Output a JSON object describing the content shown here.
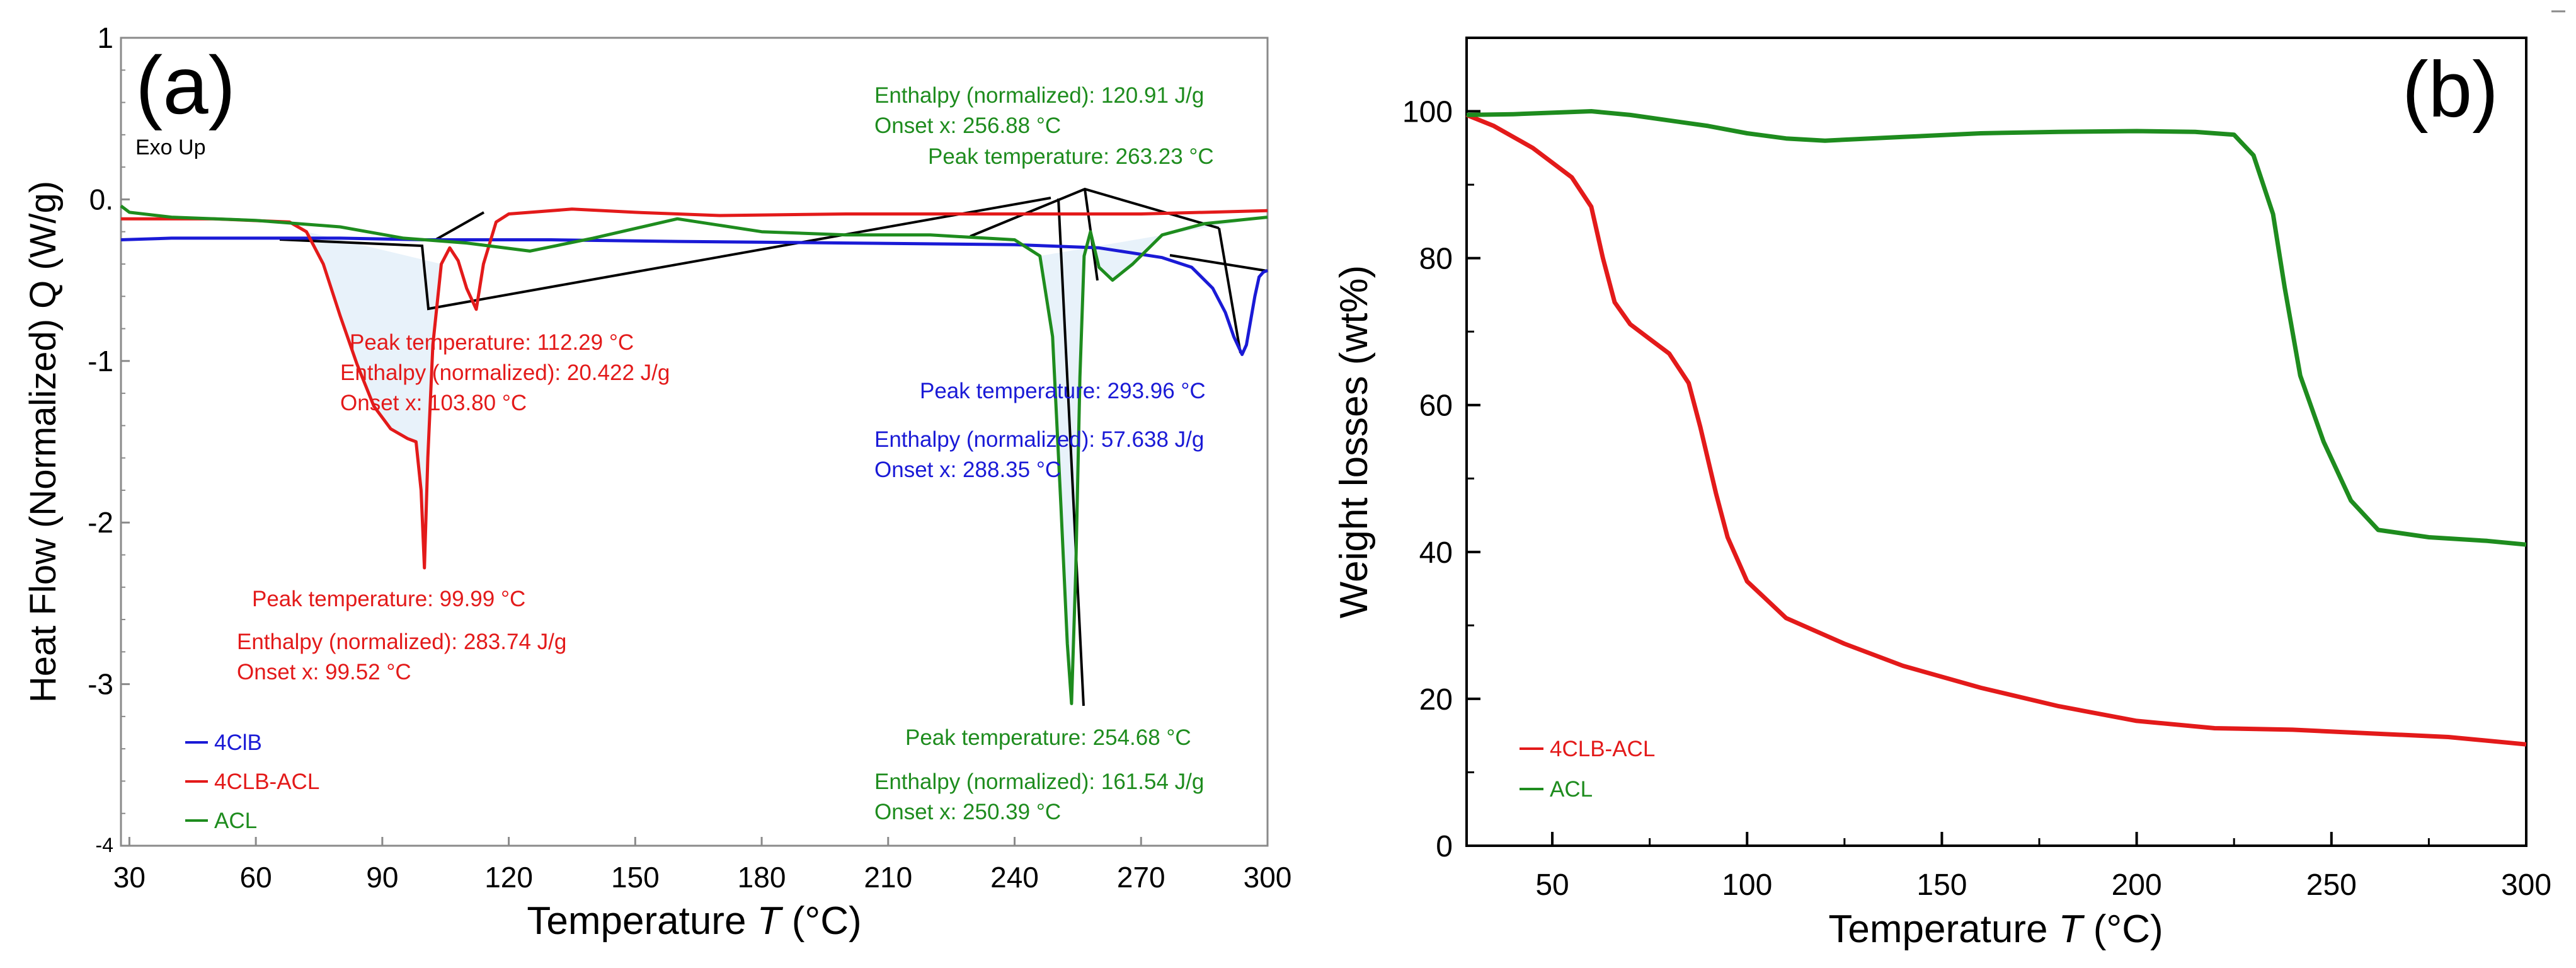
{
  "chart_data": [
    {
      "type": "line",
      "panel_label": "(a)",
      "corner_note": "Exo Up",
      "xlabel_main": "Temperature ",
      "xlabel_italic": "T",
      "xlabel_unit": " (°C)",
      "ylabel": "Heat Flow (Normalized) Q (W/g)",
      "xlim": [
        28,
        300
      ],
      "ylim": [
        -4,
        1
      ],
      "x_ticks": [
        30,
        60,
        90,
        120,
        150,
        180,
        210,
        240,
        270,
        300
      ],
      "x_tick_labels": [
        "30",
        "60",
        "90",
        "120",
        "150",
        "180",
        "210",
        "240",
        "270",
        "300"
      ],
      "y_ticks": [
        1,
        0,
        -1,
        -2,
        -3,
        -4
      ],
      "y_tick_labels": [
        "1",
        "0.",
        "-1",
        "-2",
        "-3",
        "-4"
      ],
      "colors": {
        "4ClB": "#1a1ad6",
        "4CLB-ACL": "#e31a1a",
        "ACL": "#1e8c1e",
        "shade": "#e8f2fa",
        "frame": "#8a8a8a"
      },
      "legend": [
        {
          "label": "4ClB",
          "color": "#1a1ad6"
        },
        {
          "label": "4CLB-ACL",
          "color": "#e31a1a"
        },
        {
          "label": "ACL",
          "color": "#1e8c1e"
        }
      ],
      "series": [
        {
          "name": "4ClB",
          "color": "#1a1ad6",
          "points": [
            [
              28,
              -0.25
            ],
            [
              40,
              -0.24
            ],
            [
              60,
              -0.24
            ],
            [
              80,
              -0.24
            ],
            [
              100,
              -0.25
            ],
            [
              130,
              -0.25
            ],
            [
              160,
              -0.26
            ],
            [
              200,
              -0.27
            ],
            [
              240,
              -0.28
            ],
            [
              260,
              -0.3
            ],
            [
              275,
              -0.36
            ],
            [
              282,
              -0.42
            ],
            [
              287,
              -0.55
            ],
            [
              290,
              -0.7
            ],
            [
              292,
              -0.85
            ],
            [
              293.96,
              -0.96
            ],
            [
              295,
              -0.9
            ],
            [
              296,
              -0.75
            ],
            [
              297,
              -0.6
            ],
            [
              298,
              -0.48
            ],
            [
              299,
              -0.45
            ],
            [
              300,
              -0.44
            ]
          ]
        },
        {
          "name": "4CLB-ACL",
          "color": "#e31a1a",
          "points": [
            [
              28,
              -0.12
            ],
            [
              50,
              -0.12
            ],
            [
              68,
              -0.14
            ],
            [
              72,
              -0.2
            ],
            [
              76,
              -0.4
            ],
            [
              80,
              -0.72
            ],
            [
              84,
              -1.02
            ],
            [
              88,
              -1.28
            ],
            [
              92,
              -1.42
            ],
            [
              96,
              -1.48
            ],
            [
              98,
              -1.5
            ],
            [
              99.2,
              -1.8
            ],
            [
              99.99,
              -2.28
            ],
            [
              100.8,
              -1.6
            ],
            [
              102,
              -0.9
            ],
            [
              104,
              -0.4
            ],
            [
              106,
              -0.3
            ],
            [
              108,
              -0.38
            ],
            [
              110,
              -0.55
            ],
            [
              112.29,
              -0.68
            ],
            [
              114,
              -0.4
            ],
            [
              117,
              -0.14
            ],
            [
              120,
              -0.09
            ],
            [
              135,
              -0.06
            ],
            [
              150,
              -0.08
            ],
            [
              170,
              -0.1
            ],
            [
              200,
              -0.09
            ],
            [
              240,
              -0.09
            ],
            [
              270,
              -0.09
            ],
            [
              300,
              -0.07
            ]
          ]
        },
        {
          "name": "ACL",
          "color": "#1e8c1e",
          "points": [
            [
              28,
              -0.04
            ],
            [
              30,
              -0.08
            ],
            [
              40,
              -0.11
            ],
            [
              60,
              -0.13
            ],
            [
              80,
              -0.17
            ],
            [
              95,
              -0.24
            ],
            [
              110,
              -0.27
            ],
            [
              125,
              -0.32
            ],
            [
              140,
              -0.24
            ],
            [
              160,
              -0.12
            ],
            [
              180,
              -0.2
            ],
            [
              200,
              -0.22
            ],
            [
              220,
              -0.22
            ],
            [
              240,
              -0.25
            ],
            [
              246,
              -0.35
            ],
            [
              249,
              -0.85
            ],
            [
              251,
              -1.9
            ],
            [
              252.5,
              -2.75
            ],
            [
              253.5,
              -3.12
            ],
            [
              254.5,
              -2.3
            ],
            [
              255.5,
              -1.1
            ],
            [
              256.5,
              -0.35
            ],
            [
              258,
              -0.2
            ],
            [
              260,
              -0.42
            ],
            [
              263.23,
              -0.5
            ],
            [
              268,
              -0.4
            ],
            [
              275,
              -0.22
            ],
            [
              285,
              -0.15
            ],
            [
              300,
              -0.11
            ]
          ]
        }
      ],
      "shaded_regions": [
        {
          "from": 72,
          "to": 104,
          "series": "4CLB-ACL"
        },
        {
          "from": 246,
          "to": 300,
          "series": "ACL"
        }
      ],
      "annotations": [
        {
          "lines": [
            "Peak temperature: 112.29 °C",
            "Enthalpy (normalized): 20.422 J/g",
            "Onset x: 103.80 °C"
          ],
          "color": "#e31a1a"
        },
        {
          "lines": [
            "Peak temperature: 99.99 °C"
          ],
          "color": "#e31a1a"
        },
        {
          "lines": [
            "Enthalpy (normalized): 283.74 J/g",
            "Onset x: 99.52 °C"
          ],
          "color": "#e31a1a"
        },
        {
          "lines": [
            "Enthalpy (normalized): 120.91 J/g",
            "Onset x: 256.88 °C"
          ],
          "color": "#1e8c1e"
        },
        {
          "lines": [
            "Peak temperature: 263.23 °C"
          ],
          "color": "#1e8c1e"
        },
        {
          "lines": [
            "Peak temperature: 293.96 °C"
          ],
          "color": "#1a1ad6"
        },
        {
          "lines": [
            "Enthalpy (normalized): 57.638 J/g",
            "Onset x: 288.35 °C"
          ],
          "color": "#1a1ad6"
        },
        {
          "lines": [
            "Peak temperature: 254.68 °C"
          ],
          "color": "#1e8c1e"
        },
        {
          "lines": [
            "Enthalpy (normalized): 161.54 J/g",
            "Onset x: 250.39 °C"
          ],
          "color": "#1e8c1e"
        }
      ]
    },
    {
      "type": "line",
      "panel_label": "(b)",
      "xlabel_main": "Temperature ",
      "xlabel_italic": "T",
      "xlabel_unit": " (°C)",
      "ylabel": "Weight losses (wt%)",
      "xlim": [
        28,
        300
      ],
      "ylim": [
        0,
        110
      ],
      "x_ticks": [
        50,
        100,
        150,
        200,
        250,
        300
      ],
      "x_tick_labels": [
        "50",
        "100",
        "150",
        "200",
        "250",
        "300"
      ],
      "y_ticks": [
        0,
        20,
        40,
        60,
        80,
        100
      ],
      "y_tick_labels": [
        "0",
        "20",
        "40",
        "60",
        "80",
        "100"
      ],
      "colors": {
        "4CLB-ACL": "#e31a1a",
        "ACL": "#1e8c1e",
        "frame": "#000000"
      },
      "legend": [
        {
          "label": "4CLB-ACL",
          "color": "#e31a1a"
        },
        {
          "label": "ACL",
          "color": "#1e8c1e"
        }
      ],
      "series": [
        {
          "name": "4CLB-ACL",
          "color": "#e31a1a",
          "points": [
            [
              28,
              99.5
            ],
            [
              35,
              98
            ],
            [
              45,
              95
            ],
            [
              55,
              91
            ],
            [
              60,
              87
            ],
            [
              63,
              80
            ],
            [
              66,
              74
            ],
            [
              70,
              71
            ],
            [
              75,
              69
            ],
            [
              80,
              67
            ],
            [
              85,
              63
            ],
            [
              88,
              57
            ],
            [
              92,
              48
            ],
            [
              95,
              42
            ],
            [
              100,
              36
            ],
            [
              110,
              31
            ],
            [
              125,
              27.5
            ],
            [
              140,
              24.5
            ],
            [
              160,
              21.5
            ],
            [
              180,
              19
            ],
            [
              200,
              17
            ],
            [
              220,
              16
            ],
            [
              240,
              15.8
            ],
            [
              260,
              15.3
            ],
            [
              280,
              14.8
            ],
            [
              300,
              13.8
            ]
          ]
        },
        {
          "name": "ACL",
          "color": "#1e8c1e",
          "points": [
            [
              28,
              99.5
            ],
            [
              40,
              99.6
            ],
            [
              60,
              100
            ],
            [
              70,
              99.5
            ],
            [
              90,
              98
            ],
            [
              100,
              97
            ],
            [
              110,
              96.3
            ],
            [
              120,
              96
            ],
            [
              140,
              96.5
            ],
            [
              160,
              97
            ],
            [
              180,
              97.2
            ],
            [
              200,
              97.3
            ],
            [
              215,
              97.2
            ],
            [
              225,
              96.8
            ],
            [
              230,
              94
            ],
            [
              235,
              86
            ],
            [
              238,
              76
            ],
            [
              242,
              64
            ],
            [
              248,
              55
            ],
            [
              255,
              47
            ],
            [
              262,
              43
            ],
            [
              275,
              42
            ],
            [
              290,
              41.5
            ],
            [
              300,
              41
            ]
          ]
        }
      ]
    }
  ]
}
